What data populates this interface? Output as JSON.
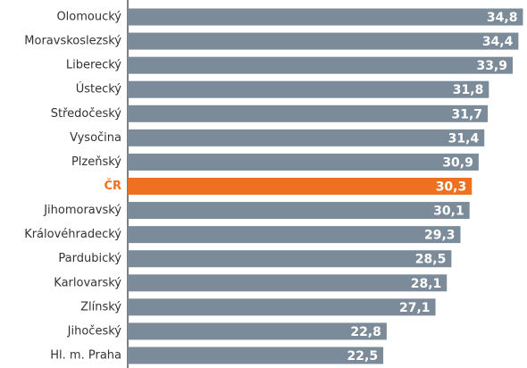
{
  "chart_data": {
    "type": "barh",
    "categories": [
      "Olomoucký",
      "Moravskoslezský",
      "Liberecký",
      "Ústecký",
      "Středočeský",
      "Vysočina",
      "Plzeňský",
      "ČR",
      "Jihomoravský",
      "Královéhradecký",
      "Pardubický",
      "Karlovarský",
      "Zlínský",
      "Jihočeský",
      "Hl. m. Praha"
    ],
    "values": [
      34.8,
      34.4,
      33.9,
      31.8,
      31.7,
      31.4,
      30.9,
      30.3,
      30.1,
      29.3,
      28.5,
      28.1,
      27.1,
      22.8,
      22.5
    ],
    "value_labels": [
      "34,8",
      "34,4",
      "33,9",
      "31,8",
      "31,7",
      "31,4",
      "30,9",
      "30,3",
      "30,1",
      "29,3",
      "28,5",
      "28,1",
      "27,1",
      "22,8",
      "22,5"
    ],
    "colors": [
      "#7b8b99",
      "#7b8b99",
      "#7b8b99",
      "#7b8b99",
      "#7b8b99",
      "#7b8b99",
      "#7b8b99",
      "#f07021",
      "#7b8b99",
      "#7b8b99",
      "#7b8b99",
      "#7b8b99",
      "#7b8b99",
      "#7b8b99",
      "#7b8b99"
    ],
    "xlim": [
      0,
      35
    ]
  }
}
